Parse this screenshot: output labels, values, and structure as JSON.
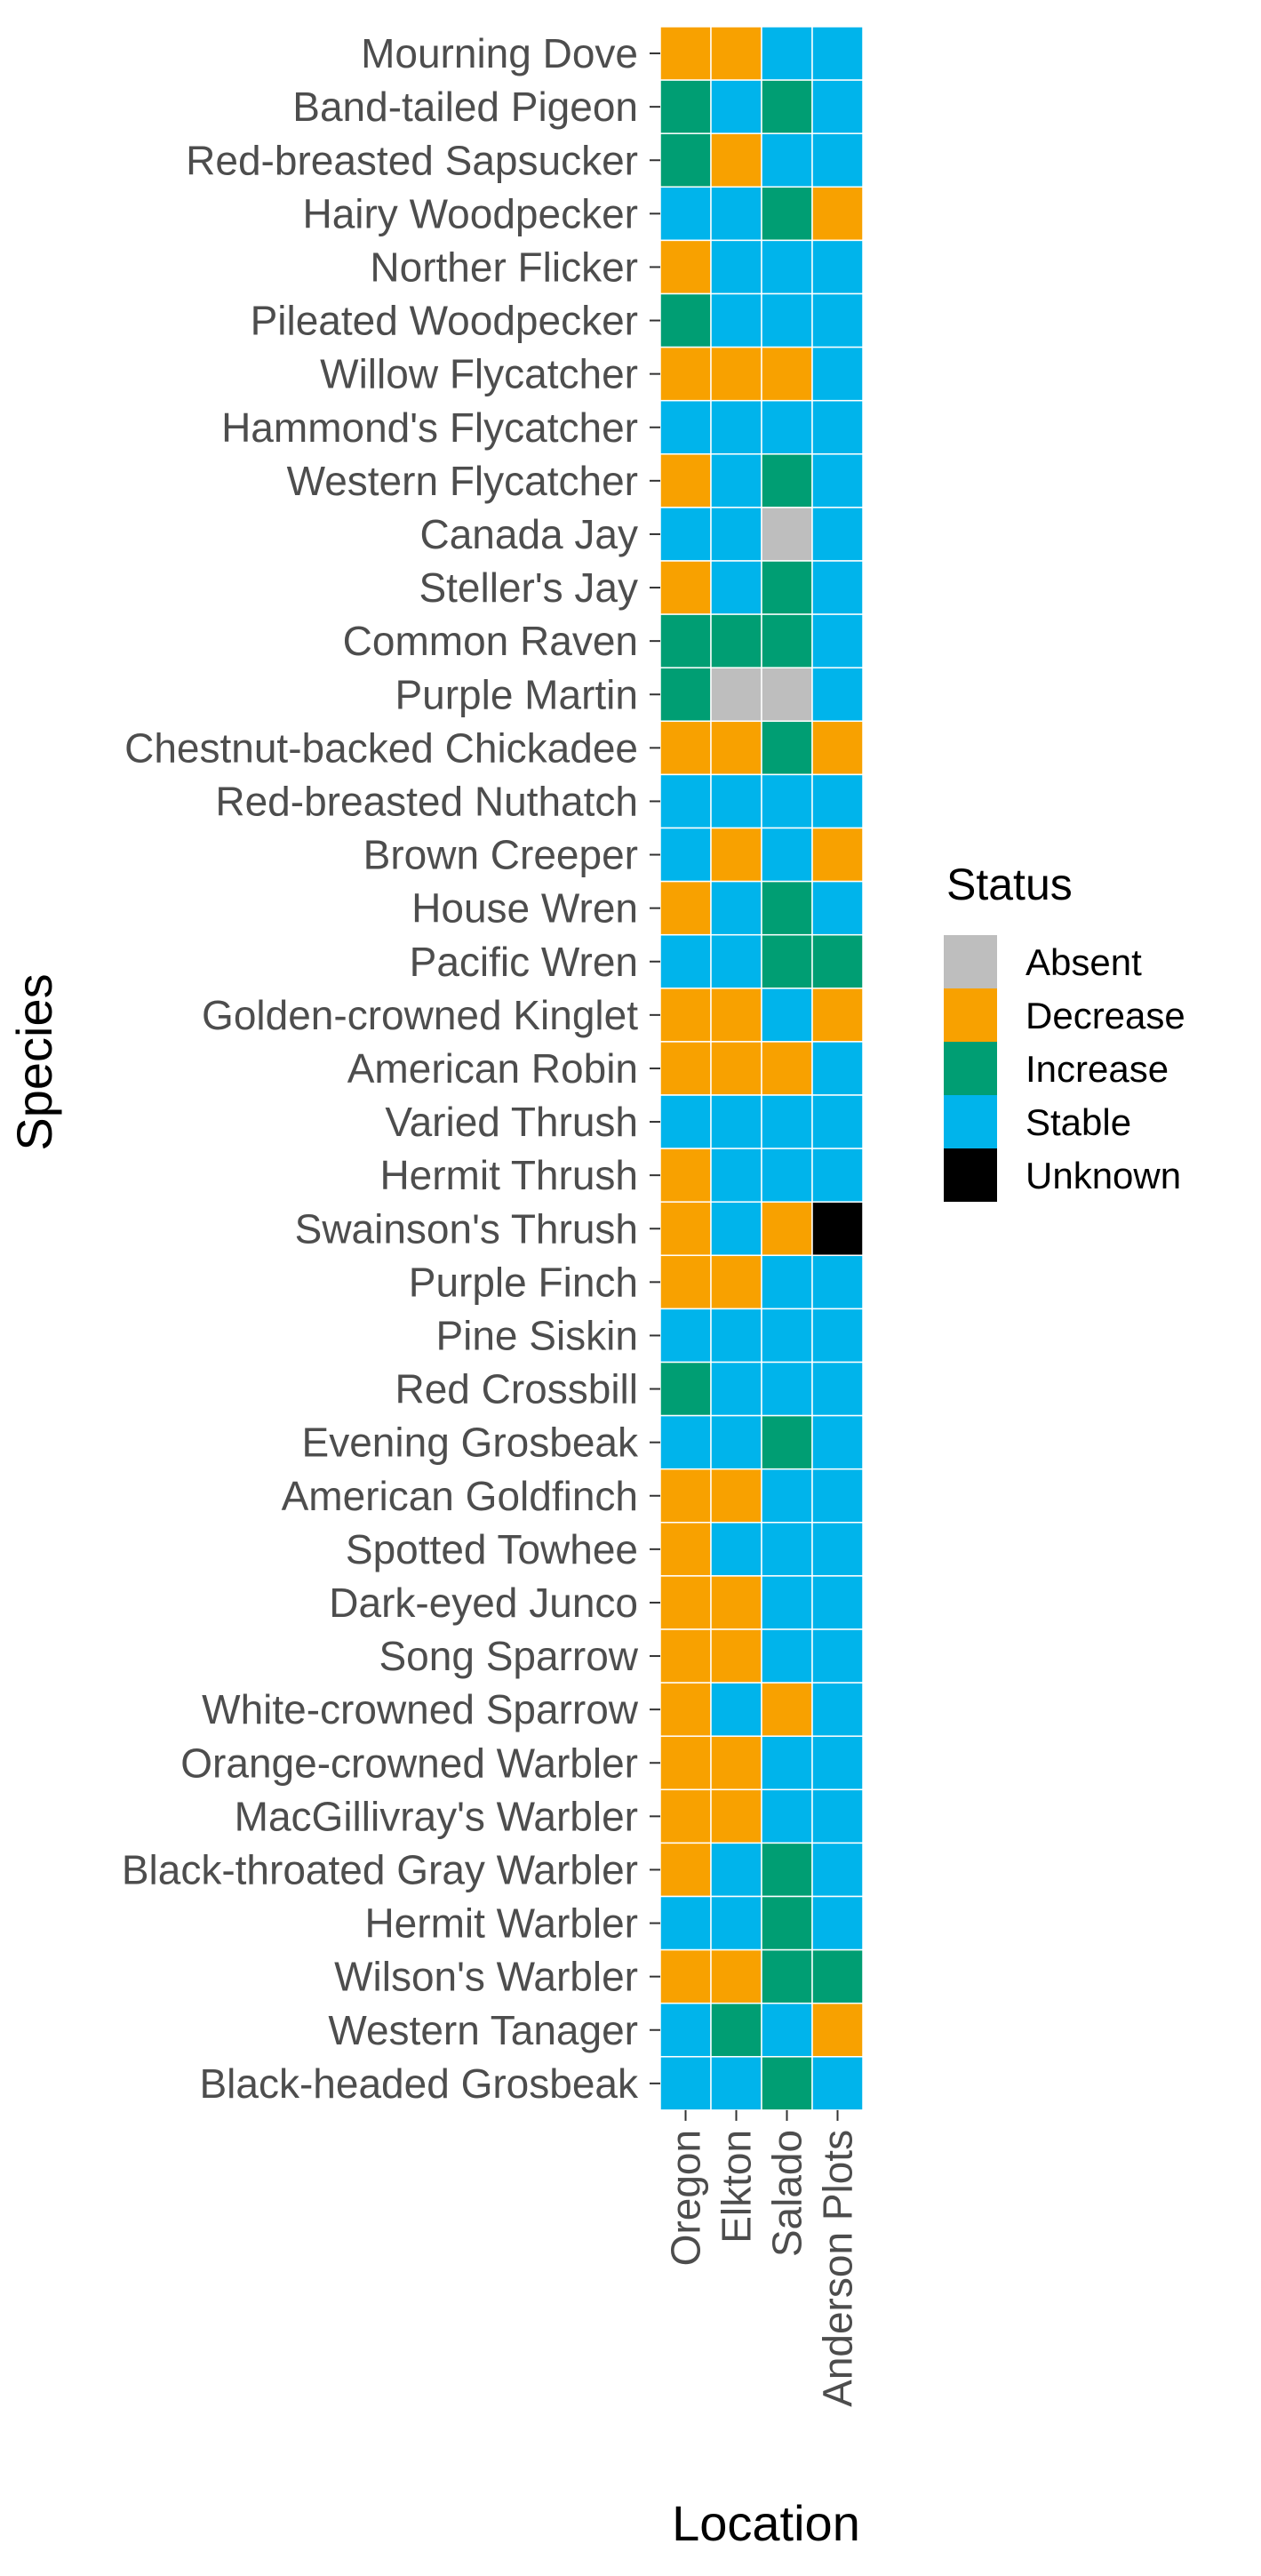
{
  "chart_data": {
    "type": "heatmap",
    "title": "",
    "xlabel": "Location",
    "ylabel": "Species",
    "grid": false,
    "legend_position": "right",
    "x": [
      "Oregon",
      "Elkton",
      "Salado",
      "Anderson Plots"
    ],
    "y": [
      "Mourning Dove",
      "Band-tailed Pigeon",
      "Red-breasted Sapsucker",
      "Hairy Woodpecker",
      "Norther Flicker",
      "Pileated Woodpecker",
      "Willow Flycatcher",
      "Hammond's Flycatcher",
      "Western Flycatcher",
      "Canada Jay",
      "Steller's Jay",
      "Common Raven",
      "Purple Martin",
      "Chestnut-backed Chickadee",
      "Red-breasted Nuthatch",
      "Brown Creeper",
      "House Wren",
      "Pacific Wren",
      "Golden-crowned Kinglet",
      "American Robin",
      "Varied Thrush",
      "Hermit Thrush",
      "Swainson's Thrush",
      "Purple Finch",
      "Pine Siskin",
      "Red Crossbill",
      "Evening Grosbeak",
      "American Goldfinch",
      "Spotted Towhee",
      "Dark-eyed Junco",
      "Song Sparrow",
      "White-crowned Sparrow",
      "Orange-crowned Warbler",
      "MacGillivray's Warbler",
      "Black-throated Gray Warbler",
      "Hermit Warbler",
      "Wilson's Warbler",
      "Western Tanager",
      "Black-headed Grosbeak"
    ],
    "values": [
      [
        "Decrease",
        "Decrease",
        "Stable",
        "Stable"
      ],
      [
        "Increase",
        "Stable",
        "Increase",
        "Stable"
      ],
      [
        "Increase",
        "Decrease",
        "Stable",
        "Stable"
      ],
      [
        "Stable",
        "Stable",
        "Increase",
        "Decrease"
      ],
      [
        "Decrease",
        "Stable",
        "Stable",
        "Stable"
      ],
      [
        "Increase",
        "Stable",
        "Stable",
        "Stable"
      ],
      [
        "Decrease",
        "Decrease",
        "Decrease",
        "Stable"
      ],
      [
        "Stable",
        "Stable",
        "Stable",
        "Stable"
      ],
      [
        "Decrease",
        "Stable",
        "Increase",
        "Stable"
      ],
      [
        "Stable",
        "Stable",
        "Absent",
        "Stable"
      ],
      [
        "Decrease",
        "Stable",
        "Increase",
        "Stable"
      ],
      [
        "Increase",
        "Increase",
        "Increase",
        "Stable"
      ],
      [
        "Increase",
        "Absent",
        "Absent",
        "Stable"
      ],
      [
        "Decrease",
        "Decrease",
        "Increase",
        "Decrease"
      ],
      [
        "Stable",
        "Stable",
        "Stable",
        "Stable"
      ],
      [
        "Stable",
        "Decrease",
        "Stable",
        "Decrease"
      ],
      [
        "Decrease",
        "Stable",
        "Increase",
        "Stable"
      ],
      [
        "Stable",
        "Stable",
        "Increase",
        "Increase"
      ],
      [
        "Decrease",
        "Decrease",
        "Stable",
        "Decrease"
      ],
      [
        "Decrease",
        "Decrease",
        "Decrease",
        "Stable"
      ],
      [
        "Stable",
        "Stable",
        "Stable",
        "Stable"
      ],
      [
        "Decrease",
        "Stable",
        "Stable",
        "Stable"
      ],
      [
        "Decrease",
        "Stable",
        "Decrease",
        "Unknown"
      ],
      [
        "Decrease",
        "Decrease",
        "Stable",
        "Stable"
      ],
      [
        "Stable",
        "Stable",
        "Stable",
        "Stable"
      ],
      [
        "Increase",
        "Stable",
        "Stable",
        "Stable"
      ],
      [
        "Stable",
        "Stable",
        "Increase",
        "Stable"
      ],
      [
        "Decrease",
        "Decrease",
        "Stable",
        "Stable"
      ],
      [
        "Decrease",
        "Stable",
        "Stable",
        "Stable"
      ],
      [
        "Decrease",
        "Decrease",
        "Stable",
        "Stable"
      ],
      [
        "Decrease",
        "Decrease",
        "Stable",
        "Stable"
      ],
      [
        "Decrease",
        "Stable",
        "Decrease",
        "Stable"
      ],
      [
        "Decrease",
        "Decrease",
        "Stable",
        "Stable"
      ],
      [
        "Decrease",
        "Decrease",
        "Stable",
        "Stable"
      ],
      [
        "Decrease",
        "Stable",
        "Increase",
        "Stable"
      ],
      [
        "Stable",
        "Stable",
        "Increase",
        "Stable"
      ],
      [
        "Decrease",
        "Decrease",
        "Increase",
        "Increase"
      ],
      [
        "Stable",
        "Increase",
        "Stable",
        "Decrease"
      ],
      [
        "Stable",
        "Stable",
        "Increase",
        "Stable"
      ]
    ],
    "legend": {
      "title": "Status",
      "entries": [
        "Absent",
        "Decrease",
        "Increase",
        "Stable",
        "Unknown"
      ]
    },
    "colors": {
      "Absent": "#bebebe",
      "Decrease": "#f8a100",
      "Increase": "#009e73",
      "Stable": "#00b4eb",
      "Unknown": "#000000"
    }
  }
}
